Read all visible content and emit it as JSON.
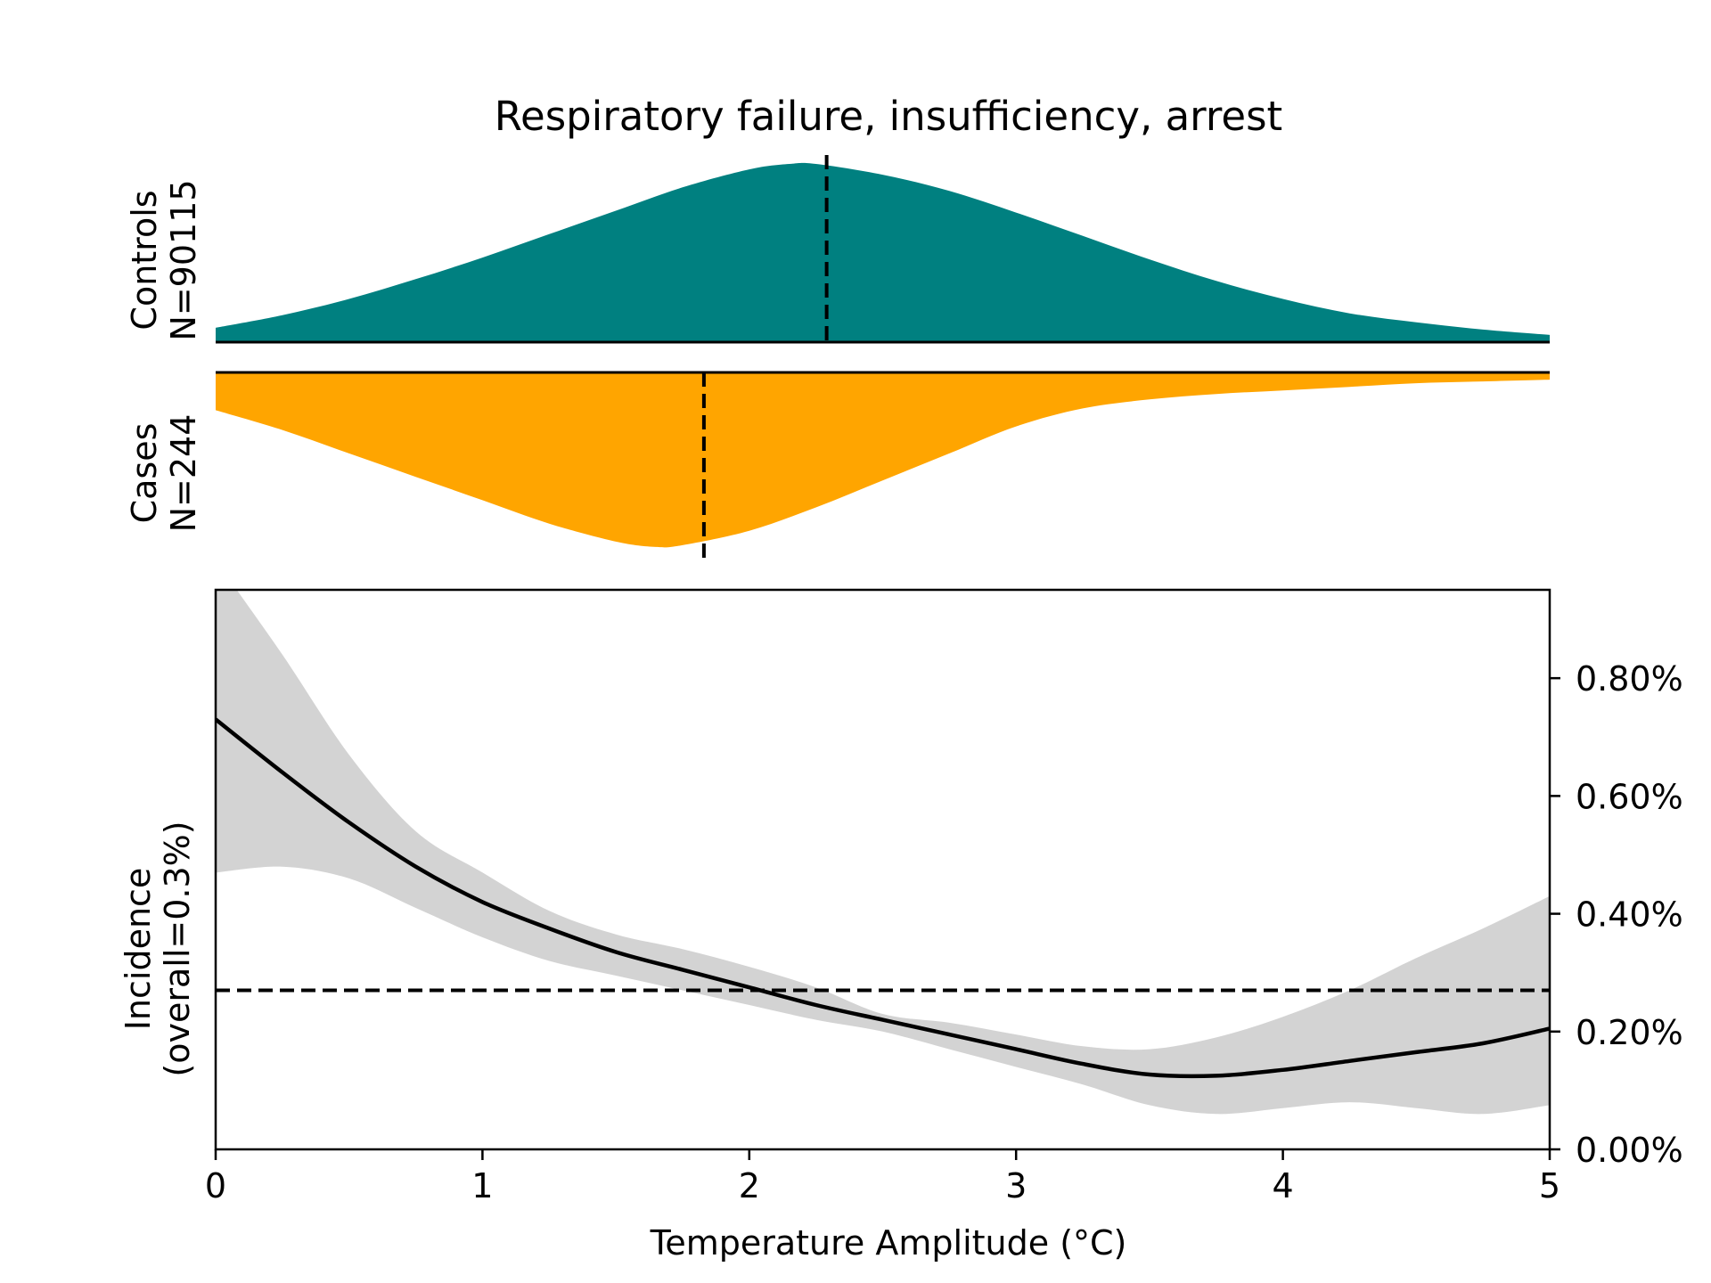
{
  "chart_data": {
    "type": "area",
    "title": "Respiratory failure, insufficiency, arrest",
    "xlabel": "Temperature Amplitude (°C)",
    "xlim": [
      0,
      5
    ],
    "x_ticks": [
      "0",
      "1",
      "2",
      "3",
      "4",
      "5"
    ],
    "x_tick_values": [
      0,
      1,
      2,
      3,
      4,
      5
    ],
    "controls": {
      "label": "Controls",
      "n_label": "N=90115",
      "color": "#008080",
      "mean": 2.29,
      "x": [
        0,
        0.25,
        0.5,
        0.75,
        1.0,
        1.25,
        1.5,
        1.75,
        2.0,
        2.15,
        2.25,
        2.5,
        2.75,
        3.0,
        3.25,
        3.5,
        3.75,
        4.0,
        4.25,
        4.5,
        4.75,
        5.0
      ],
      "density": [
        0.08,
        0.15,
        0.24,
        0.35,
        0.47,
        0.6,
        0.73,
        0.86,
        0.96,
        0.99,
        0.99,
        0.93,
        0.84,
        0.72,
        0.59,
        0.46,
        0.34,
        0.24,
        0.16,
        0.11,
        0.07,
        0.04
      ]
    },
    "cases": {
      "label": "Cases",
      "n_label": "N=244",
      "color": "#FFA500",
      "mean": 1.83,
      "x": [
        0,
        0.25,
        0.5,
        0.75,
        1.0,
        1.25,
        1.5,
        1.65,
        1.75,
        2.0,
        2.25,
        2.5,
        2.75,
        3.0,
        3.25,
        3.5,
        3.75,
        4.0,
        4.25,
        4.5,
        4.75,
        5.0
      ],
      "density": [
        0.21,
        0.32,
        0.45,
        0.58,
        0.71,
        0.84,
        0.94,
        0.97,
        0.96,
        0.88,
        0.75,
        0.6,
        0.45,
        0.3,
        0.2,
        0.15,
        0.12,
        0.1,
        0.08,
        0.06,
        0.05,
        0.04
      ]
    },
    "incidence": {
      "ylabel_line1": "Incidence",
      "ylabel_line2": "(overall=0.3%)",
      "ylim": [
        0,
        0.95
      ],
      "y_ticks": [
        "0.00%",
        "0.20%",
        "0.40%",
        "0.60%",
        "0.80%"
      ],
      "y_tick_values": [
        0,
        0.2,
        0.4,
        0.6,
        0.8
      ],
      "overall": 0.27,
      "x": [
        0,
        0.25,
        0.5,
        0.75,
        1.0,
        1.25,
        1.5,
        1.75,
        2.0,
        2.25,
        2.5,
        2.75,
        3.0,
        3.25,
        3.5,
        3.75,
        4.0,
        4.25,
        4.5,
        4.75,
        5.0
      ],
      "mean": [
        0.73,
        0.64,
        0.555,
        0.48,
        0.42,
        0.375,
        0.335,
        0.305,
        0.275,
        0.245,
        0.22,
        0.195,
        0.17,
        0.145,
        0.127,
        0.125,
        0.135,
        0.15,
        0.165,
        0.18,
        0.205
      ],
      "lower": [
        0.47,
        0.48,
        0.46,
        0.41,
        0.36,
        0.32,
        0.295,
        0.27,
        0.245,
        0.22,
        0.2,
        0.17,
        0.14,
        0.11,
        0.075,
        0.06,
        0.07,
        0.08,
        0.07,
        0.06,
        0.075
      ],
      "upper": [
        1.0,
        0.84,
        0.67,
        0.54,
        0.47,
        0.405,
        0.365,
        0.34,
        0.31,
        0.275,
        0.23,
        0.215,
        0.195,
        0.175,
        0.17,
        0.19,
        0.225,
        0.27,
        0.325,
        0.375,
        0.43
      ],
      "band_color": "#d3d3d3"
    }
  }
}
